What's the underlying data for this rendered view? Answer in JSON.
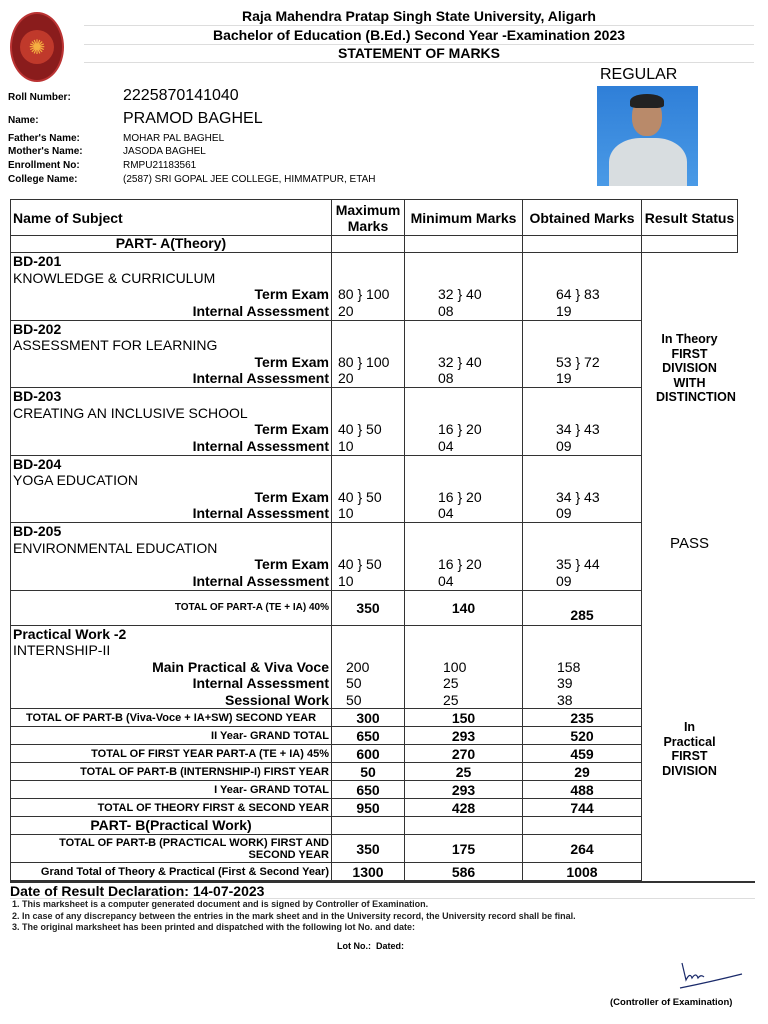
{
  "header": {
    "university": "Raja Mahendra Pratap Singh State University, Aligarh",
    "exam": "Bachelor of Education (B.Ed.) Second Year -Examination 2023",
    "title": "STATEMENT OF MARKS",
    "type": "REGULAR"
  },
  "student": {
    "roll_label": "Roll Number:",
    "roll": "2225870141040",
    "name_label": "Name:",
    "name": "PRAMOD BAGHEL",
    "father_label": "Father's Name:",
    "father": "MOHAR PAL BAGHEL",
    "mother_label": "Mother's Name:",
    "mother": "JASODA BAGHEL",
    "enroll_label": "Enrollment No:",
    "enroll": "RMPU21183561",
    "college_label": "College Name:",
    "college": "(2587) SRI GOPAL JEE COLLEGE, HIMMATPUR, ETAH"
  },
  "table": {
    "headers": [
      "Name of Subject",
      "Maximum Marks",
      "Minimum Marks",
      "Obtained Marks",
      "Result Status"
    ],
    "part_a": "PART- A(Theory)",
    "term_label": "Term Exam",
    "ia_label": "Internal Assessment",
    "subjects": [
      {
        "code": "BD-201",
        "name": "KNOWLEDGE & CURRICULUM",
        "max_te": "80 } 100",
        "max_ia": "20",
        "min_te": "32 } 40",
        "min_ia": "08",
        "obt_te": "64 } 83",
        "obt_ia": "19"
      },
      {
        "code": "BD-202",
        "name": "ASSESSMENT FOR LEARNING",
        "max_te": "80 } 100",
        "max_ia": "20",
        "min_te": "32 } 40",
        "min_ia": "08",
        "obt_te": "53 } 72",
        "obt_ia": "19"
      },
      {
        "code": "BD-203",
        "name": "CREATING AN INCLUSIVE SCHOOL",
        "max_te": "40 } 50",
        "max_ia": "10",
        "min_te": "16 } 20",
        "min_ia": "04",
        "obt_te": "34 } 43",
        "obt_ia": "09"
      },
      {
        "code": "BD-204",
        "name": "YOGA EDUCATION",
        "max_te": "40 } 50",
        "max_ia": "10",
        "min_te": "16 } 20",
        "min_ia": "04",
        "obt_te": "34 } 43",
        "obt_ia": "09"
      },
      {
        "code": "BD-205",
        "name": "ENVIRONMENTAL EDUCATION",
        "max_te": "40 } 50",
        "max_ia": "10",
        "min_te": "16 } 20",
        "min_ia": "04",
        "obt_te": "35 } 44",
        "obt_ia": "09"
      }
    ],
    "total_a": {
      "label": "TOTAL OF PART-A (TE + IA) 40%",
      "max": "350",
      "min": "140",
      "obt": "285"
    },
    "practical": {
      "title": "Practical Work -2",
      "name": "INTERNSHIP-II",
      "rows": [
        {
          "label": "Main Practical & Viva Voce",
          "max": "200",
          "min": "100",
          "obt": "158"
        },
        {
          "label": "Internal Assessment",
          "max": "50",
          "min": "25",
          "obt": "39"
        },
        {
          "label": "Sessional Work",
          "max": "50",
          "min": "25",
          "obt": "38"
        }
      ]
    },
    "totals": [
      {
        "label": "TOTAL OF PART-B (Viva-Voce + IA+SW) SECOND YEAR",
        "max": "300",
        "min": "150",
        "obt": "235"
      },
      {
        "label": "II Year- GRAND TOTAL",
        "max": "650",
        "min": "293",
        "obt": "520"
      },
      {
        "label": "TOTAL OF FIRST YEAR  PART-A (TE + IA) 45%",
        "max": "600",
        "min": "270",
        "obt": "459"
      },
      {
        "label": "TOTAL OF PART-B (INTERNSHIP-I) FIRST YEAR",
        "max": "50",
        "min": "25",
        "obt": "29"
      },
      {
        "label": "I Year- GRAND TOTAL",
        "max": "650",
        "min": "293",
        "obt": "488"
      },
      {
        "label": "TOTAL OF THEORY FIRST & SECOND YEAR",
        "max": "950",
        "min": "428",
        "obt": "744"
      }
    ],
    "part_b": "PART- B(Practical Work)",
    "total_b": {
      "label": "TOTAL OF PART-B (PRACTICAL WORK) FIRST AND SECOND YEAR",
      "max": "350",
      "min": "175",
      "obt": "264"
    },
    "grand": {
      "label": "Grand Total of Theory & Practical  (First & Second Year)",
      "max": "1300",
      "min": "586",
      "obt": "1008"
    },
    "result": {
      "theory": "In Theory FIRST DIVISION WITH DISTINCTION",
      "pass": "PASS",
      "practical": "In Practical FIRST DIVISION"
    }
  },
  "footer": {
    "declaration": "Date of Result Declaration: 14-07-2023",
    "notes": [
      "1. This marksheet is a computer generated document and is signed by Controller of Examination.",
      "2. In case of any discrepancy between the entries in the mark sheet and in the University record, the University record shall be final.",
      "3. The original marksheet has been printed and dispatched with the following lot No. and date:"
    ],
    "lot": "Lot No.:  Dated:",
    "signatory": "(Controller of Examination)"
  }
}
